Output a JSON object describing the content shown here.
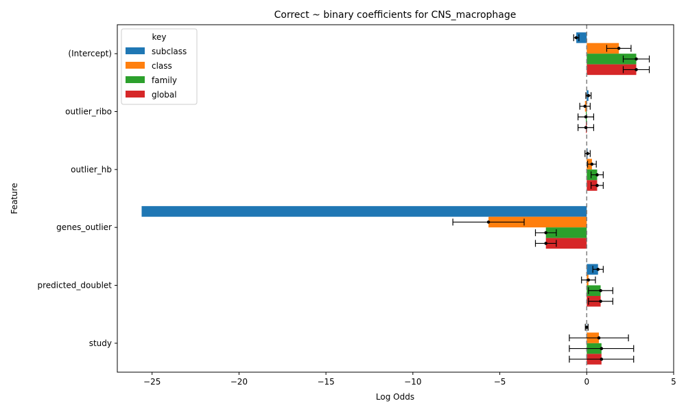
{
  "chart_data": {
    "type": "bar",
    "orientation": "horizontal",
    "title": "Correct ~ binary coefficients for CNS_macrophage",
    "xlabel": "Log Odds",
    "ylabel": "Feature",
    "xlim": [
      -27.0,
      5.0
    ],
    "xticks": [
      -25,
      -20,
      -15,
      -10,
      -5,
      0,
      5
    ],
    "xtick_labels": [
      "−25",
      "−20",
      "−15",
      "−10",
      "−5",
      "0",
      "5"
    ],
    "reference_line": {
      "x": 0,
      "style": "dashed",
      "color": "#808080"
    },
    "categories": [
      "(Intercept)",
      "outlier_ribo",
      "outlier_hb",
      "genes_outlier",
      "predicted_doublet",
      "study"
    ],
    "legend": {
      "title": "key",
      "placement": "upper-left"
    },
    "series": [
      {
        "name": "subclass",
        "color": "#1f77b4",
        "values": [
          -0.6,
          0.1,
          0.05,
          -25.6,
          0.65,
          0.0
        ],
        "ci_low": [
          -0.75,
          -0.05,
          -0.1,
          -25.6,
          0.35,
          -0.08
        ],
        "ci_high": [
          -0.45,
          0.25,
          0.2,
          -25.6,
          0.95,
          0.08
        ]
      },
      {
        "name": "class",
        "color": "#ff7f0e",
        "values": [
          1.85,
          -0.1,
          0.3,
          -5.65,
          0.1,
          0.7
        ],
        "ci_low": [
          1.15,
          -0.4,
          0.05,
          -7.7,
          -0.3,
          -1.0
        ],
        "ci_high": [
          2.55,
          0.2,
          0.55,
          -3.6,
          0.5,
          2.4
        ]
      },
      {
        "name": "family",
        "color": "#2ca02c",
        "values": [
          2.85,
          -0.05,
          0.6,
          -2.35,
          0.8,
          0.85
        ],
        "ci_low": [
          2.1,
          -0.5,
          0.25,
          -2.95,
          0.1,
          -1.0
        ],
        "ci_high": [
          3.6,
          0.4,
          0.95,
          -1.75,
          1.5,
          2.7
        ]
      },
      {
        "name": "global",
        "color": "#d62728",
        "values": [
          2.85,
          -0.05,
          0.6,
          -2.35,
          0.8,
          0.85
        ],
        "ci_low": [
          2.1,
          -0.5,
          0.25,
          -2.95,
          0.1,
          -1.0
        ],
        "ci_high": [
          3.6,
          0.4,
          0.95,
          -1.75,
          1.5,
          2.7
        ]
      }
    ]
  }
}
